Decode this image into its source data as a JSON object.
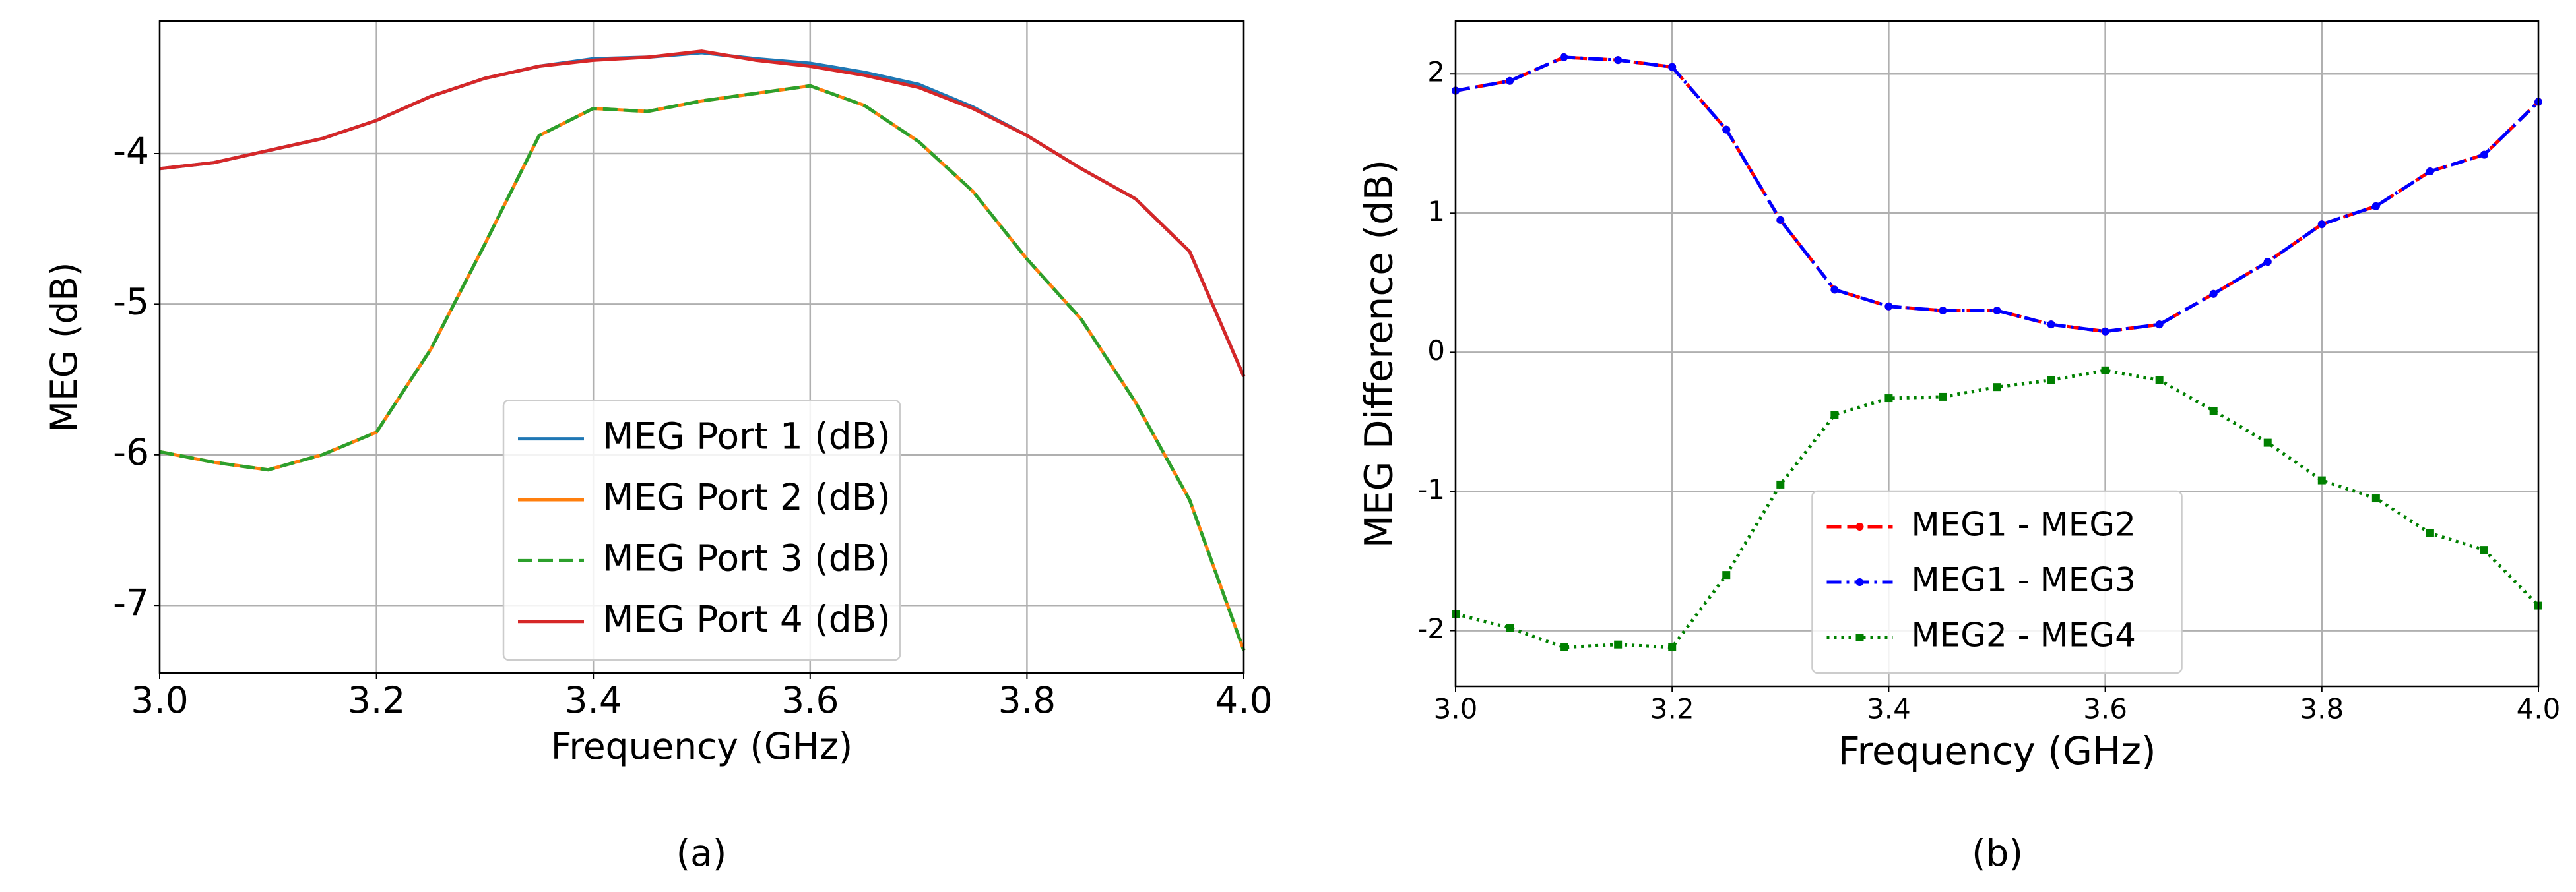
{
  "chart_data": [
    {
      "type": "line",
      "caption": "(a)",
      "x_label": "Frequency (GHz)",
      "y_label": "MEG (dB)",
      "x": [
        3.0,
        3.05,
        3.1,
        3.15,
        3.2,
        3.25,
        3.3,
        3.35,
        3.4,
        3.45,
        3.5,
        3.55,
        3.6,
        3.65,
        3.7,
        3.75,
        3.8,
        3.85,
        3.9,
        3.95,
        4.0
      ],
      "xlim": [
        3.0,
        4.0
      ],
      "ylim": [
        -7.45,
        -3.12
      ],
      "xticks": [
        {
          "value": 3.0,
          "label": "3.0"
        },
        3.2,
        3.4,
        3.6,
        3.8,
        {
          "value": 4.0,
          "label": "4.0"
        }
      ],
      "yticks": [
        -7,
        -6,
        -5,
        -4
      ],
      "grid": true,
      "legend": "lower center",
      "series": [
        {
          "name": "MEG Port 1 (dB)",
          "color": "#1f77b4",
          "linestyle": "solid",
          "values": [
            -4.1,
            -4.06,
            -3.98,
            -3.9,
            -3.78,
            -3.62,
            -3.5,
            -3.42,
            -3.37,
            -3.36,
            -3.33,
            -3.37,
            -3.4,
            -3.46,
            -3.54,
            -3.69,
            -3.88,
            -4.1,
            -4.3,
            -4.65,
            -5.48
          ]
        },
        {
          "name": "MEG Port 2 (dB)",
          "color": "#ff7f0e",
          "linestyle": "solid",
          "values": [
            -5.98,
            -6.05,
            -6.1,
            -6.0,
            -5.85,
            -5.3,
            -4.6,
            -3.88,
            -3.7,
            -3.72,
            -3.65,
            -3.6,
            -3.55,
            -3.68,
            -3.92,
            -4.25,
            -4.7,
            -5.1,
            -5.65,
            -6.3,
            -7.3
          ]
        },
        {
          "name": "MEG Port 3 (dB)",
          "color": "#2ca02c",
          "linestyle": "dashed",
          "values": [
            -5.98,
            -6.05,
            -6.1,
            -6.0,
            -5.85,
            -5.3,
            -4.6,
            -3.88,
            -3.7,
            -3.72,
            -3.65,
            -3.6,
            -3.55,
            -3.68,
            -3.92,
            -4.25,
            -4.7,
            -5.1,
            -5.65,
            -6.3,
            -7.3
          ]
        },
        {
          "name": "MEG Port 4 (dB)",
          "color": "#d62728",
          "linestyle": "solid",
          "values": [
            -4.1,
            -4.06,
            -3.98,
            -3.9,
            -3.78,
            -3.62,
            -3.5,
            -3.42,
            -3.38,
            -3.36,
            -3.32,
            -3.38,
            -3.42,
            -3.48,
            -3.56,
            -3.7,
            -3.88,
            -4.1,
            -4.3,
            -4.65,
            -5.48
          ]
        }
      ]
    },
    {
      "type": "line",
      "caption": "(b)",
      "x_label": "Frequency (GHz)",
      "y_label": "MEG Difference (dB)",
      "x": [
        3.0,
        3.05,
        3.1,
        3.15,
        3.2,
        3.25,
        3.3,
        3.35,
        3.4,
        3.45,
        3.5,
        3.55,
        3.6,
        3.65,
        3.7,
        3.75,
        3.8,
        3.85,
        3.9,
        3.95,
        4.0
      ],
      "xlim": [
        3.0,
        4.0
      ],
      "ylim": [
        -2.4,
        2.38
      ],
      "xticks": [
        {
          "value": 3.0,
          "label": "3.0"
        },
        3.2,
        3.4,
        3.6,
        3.8,
        {
          "value": 4.0,
          "label": "4.0"
        }
      ],
      "yticks": [
        -2,
        -1,
        0,
        1,
        2
      ],
      "grid": true,
      "legend": "lower center",
      "series": [
        {
          "name": "MEG1 - MEG2",
          "color": "#ff0000",
          "linestyle": "dashed",
          "marker": "circle",
          "values": [
            1.88,
            1.95,
            2.12,
            2.1,
            2.05,
            1.6,
            0.95,
            0.45,
            0.33,
            0.3,
            0.3,
            0.2,
            0.15,
            0.2,
            0.42,
            0.65,
            0.92,
            1.05,
            1.3,
            1.42,
            1.8
          ]
        },
        {
          "name": "MEG1 - MEG3",
          "color": "#0000ff",
          "linestyle": "dashdot",
          "marker": "circle",
          "values": [
            1.88,
            1.95,
            2.12,
            2.1,
            2.05,
            1.6,
            0.95,
            0.45,
            0.33,
            0.3,
            0.3,
            0.2,
            0.15,
            0.2,
            0.42,
            0.65,
            0.92,
            1.05,
            1.3,
            1.42,
            1.8
          ]
        },
        {
          "name": "MEG2 - MEG4",
          "color": "#008000",
          "linestyle": "dotted",
          "marker": "square",
          "values": [
            -1.88,
            -1.98,
            -2.12,
            -2.1,
            -2.12,
            -1.6,
            -0.95,
            -0.45,
            -0.33,
            -0.32,
            -0.25,
            -0.2,
            -0.13,
            -0.2,
            -0.42,
            -0.65,
            -0.92,
            -1.05,
            -1.3,
            -1.42,
            -1.82
          ]
        }
      ]
    }
  ]
}
